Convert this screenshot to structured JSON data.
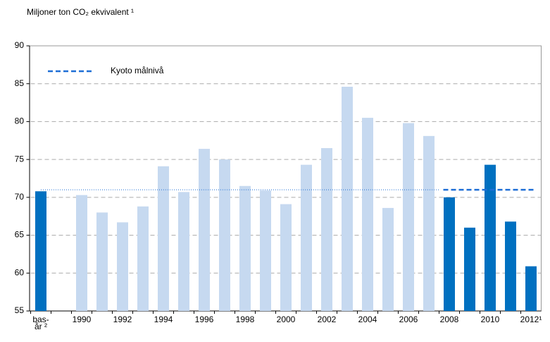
{
  "chart_data": {
    "type": "bar",
    "title": "Miljoner ton CO₂ ekvivalent ¹",
    "categories": [
      "bas-år ²",
      null,
      "1990",
      null,
      "1992",
      null,
      "1994",
      null,
      "1996",
      null,
      "1998",
      null,
      "2000",
      null,
      "2002",
      null,
      "2004",
      null,
      "2006",
      null,
      "2008",
      null,
      "2010",
      null,
      "2012¹"
    ],
    "values": [
      70.8,
      null,
      70.3,
      68.0,
      66.7,
      68.8,
      74.1,
      70.7,
      76.4,
      75.0,
      71.5,
      70.9,
      69.1,
      74.3,
      76.5,
      84.6,
      80.5,
      68.6,
      79.8,
      78.1,
      70.0,
      66.0,
      74.3,
      66.8,
      60.9
    ],
    "colors": [
      "#0070c0",
      null,
      "#c6d9f0",
      "#c6d9f0",
      "#c6d9f0",
      "#c6d9f0",
      "#c6d9f0",
      "#c6d9f0",
      "#c6d9f0",
      "#c6d9f0",
      "#c6d9f0",
      "#c6d9f0",
      "#c6d9f0",
      "#c6d9f0",
      "#c6d9f0",
      "#c6d9f0",
      "#c6d9f0",
      "#c6d9f0",
      "#c6d9f0",
      "#c6d9f0",
      "#0070c0",
      "#0070c0",
      "#0070c0",
      "#0070c0",
      "#0070c0"
    ],
    "kyoto": {
      "name": "Kyoto målnivå",
      "value": 71.0,
      "color": "#1f6fd6"
    },
    "ylim": [
      55,
      90
    ],
    "yticks": [
      55,
      60,
      65,
      70,
      75,
      80,
      85,
      90
    ],
    "grid": true
  }
}
